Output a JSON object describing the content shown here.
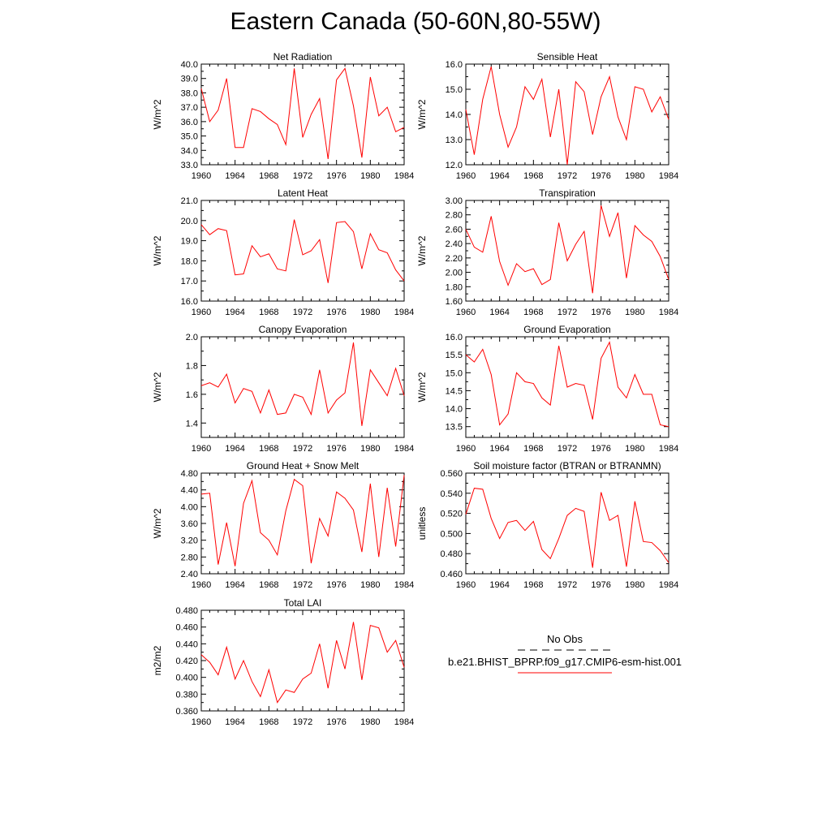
{
  "page_title": "Eastern Canada (50-60N,80-55W)",
  "legend": {
    "entries": [
      {
        "label": "No Obs",
        "color": "#000000",
        "dash": "dashed"
      },
      {
        "label": "b.e21.BHIST_BPRP.f09_g17.CMIP6-esm-hist.001",
        "color": "#ff0000",
        "dash": "solid"
      }
    ]
  },
  "chart_data": [
    {
      "type": "line",
      "title": "Net Radiation",
      "ylabel": "W/m^2",
      "xlim": [
        1960,
        1984
      ],
      "ylim": [
        33,
        40
      ],
      "x_ticks": [
        1960,
        1964,
        1968,
        1972,
        1976,
        1980,
        1984
      ],
      "x_tick_labels": [
        "1960",
        "1964",
        "1968",
        "1972",
        "1976",
        "1980",
        "1984"
      ],
      "y_ticks": [
        33,
        34,
        35,
        36,
        37,
        38,
        39,
        40
      ],
      "y_tick_labels": [
        "33.0",
        "34.0",
        "35.0",
        "36.0",
        "37.0",
        "38.0",
        "39.0",
        "40.0"
      ],
      "x": [
        1960,
        1961,
        1962,
        1963,
        1964,
        1965,
        1966,
        1967,
        1968,
        1969,
        1970,
        1971,
        1972,
        1973,
        1974,
        1975,
        1976,
        1977,
        1978,
        1979,
        1980,
        1981,
        1982,
        1983,
        1984
      ],
      "series": [
        {
          "color": "#ff0000",
          "values": [
            38.3,
            36.0,
            36.8,
            39.0,
            34.2,
            34.2,
            36.9,
            36.7,
            36.2,
            35.8,
            34.4,
            39.7,
            34.9,
            36.5,
            37.6,
            33.4,
            38.9,
            39.7,
            37.1,
            33.5,
            39.1,
            36.4,
            37.0,
            35.3,
            35.6
          ]
        }
      ]
    },
    {
      "type": "line",
      "title": "Sensible Heat",
      "ylabel": "W/m^2",
      "xlim": [
        1960,
        1984
      ],
      "ylim": [
        12,
        16
      ],
      "x_ticks": [
        1960,
        1964,
        1968,
        1972,
        1976,
        1980,
        1984
      ],
      "x_tick_labels": [
        "1960",
        "1964",
        "1968",
        "1972",
        "1976",
        "1980",
        "1984"
      ],
      "y_ticks": [
        12,
        13,
        14,
        15,
        16
      ],
      "y_tick_labels": [
        "12.0",
        "13.0",
        "14.0",
        "15.0",
        "16.0"
      ],
      "x": [
        1960,
        1961,
        1962,
        1963,
        1964,
        1965,
        1966,
        1967,
        1968,
        1969,
        1970,
        1971,
        1972,
        1973,
        1974,
        1975,
        1976,
        1977,
        1978,
        1979,
        1980,
        1981,
        1982,
        1983,
        1984
      ],
      "series": [
        {
          "color": "#ff0000",
          "values": [
            14.2,
            12.4,
            14.6,
            15.9,
            14.0,
            12.7,
            13.5,
            15.1,
            14.6,
            15.4,
            13.1,
            15.0,
            12.0,
            15.3,
            14.9,
            13.2,
            14.7,
            15.5,
            13.9,
            13.0,
            15.1,
            15.0,
            14.1,
            14.7,
            13.8
          ]
        }
      ]
    },
    {
      "type": "line",
      "title": "Latent Heat",
      "ylabel": "W/m^2",
      "xlim": [
        1960,
        1984
      ],
      "ylim": [
        16,
        21
      ],
      "x_ticks": [
        1960,
        1964,
        1968,
        1972,
        1976,
        1980,
        1984
      ],
      "x_tick_labels": [
        "1960",
        "1964",
        "1968",
        "1972",
        "1976",
        "1980",
        "1984"
      ],
      "y_ticks": [
        16,
        17,
        18,
        19,
        20,
        21
      ],
      "y_tick_labels": [
        "16.0",
        "17.0",
        "18.0",
        "19.0",
        "20.0",
        "21.0"
      ],
      "x": [
        1960,
        1961,
        1962,
        1963,
        1964,
        1965,
        1966,
        1967,
        1968,
        1969,
        1970,
        1971,
        1972,
        1973,
        1974,
        1975,
        1976,
        1977,
        1978,
        1979,
        1980,
        1981,
        1982,
        1983,
        1984
      ],
      "series": [
        {
          "color": "#ff0000",
          "values": [
            19.8,
            19.3,
            19.6,
            19.5,
            17.3,
            17.35,
            18.75,
            18.2,
            18.35,
            17.6,
            17.5,
            20.05,
            18.3,
            18.5,
            19.05,
            16.9,
            19.9,
            19.95,
            19.45,
            17.6,
            19.35,
            18.55,
            18.4,
            17.55,
            17.0
          ]
        }
      ]
    },
    {
      "type": "line",
      "title": "Transpiration",
      "ylabel": "W/m^2",
      "xlim": [
        1960,
        1984
      ],
      "ylim": [
        1.6,
        3.0
      ],
      "x_ticks": [
        1960,
        1964,
        1968,
        1972,
        1976,
        1980,
        1984
      ],
      "x_tick_labels": [
        "1960",
        "1964",
        "1968",
        "1972",
        "1976",
        "1980",
        "1984"
      ],
      "y_ticks": [
        1.6,
        1.8,
        2.0,
        2.2,
        2.4,
        2.6,
        2.8,
        3.0
      ],
      "y_tick_labels": [
        "1.60",
        "1.80",
        "2.00",
        "2.20",
        "2.40",
        "2.60",
        "2.80",
        "3.00"
      ],
      "x": [
        1960,
        1961,
        1962,
        1963,
        1964,
        1965,
        1966,
        1967,
        1968,
        1969,
        1970,
        1971,
        1972,
        1973,
        1974,
        1975,
        1976,
        1977,
        1978,
        1979,
        1980,
        1981,
        1982,
        1983,
        1984
      ],
      "series": [
        {
          "color": "#ff0000",
          "values": [
            2.6,
            2.35,
            2.28,
            2.78,
            2.15,
            1.82,
            2.12,
            2.01,
            2.05,
            1.83,
            1.9,
            2.69,
            2.16,
            2.39,
            2.57,
            1.71,
            2.93,
            2.5,
            2.83,
            1.92,
            2.65,
            2.52,
            2.43,
            2.22,
            1.9
          ]
        }
      ]
    },
    {
      "type": "line",
      "title": "Canopy Evaporation",
      "ylabel": "W/m^2",
      "xlim": [
        1960,
        1984
      ],
      "ylim": [
        1.3,
        2.0
      ],
      "x_ticks": [
        1960,
        1964,
        1968,
        1972,
        1976,
        1980,
        1984
      ],
      "x_tick_labels": [
        "1960",
        "1964",
        "1968",
        "1972",
        "1976",
        "1980",
        "1984"
      ],
      "y_ticks": [
        1.4,
        1.6,
        1.8,
        2.0
      ],
      "y_tick_labels": [
        "1.4",
        "1.6",
        "1.8",
        "2.0"
      ],
      "x": [
        1960,
        1961,
        1962,
        1963,
        1964,
        1965,
        1966,
        1967,
        1968,
        1969,
        1970,
        1971,
        1972,
        1973,
        1974,
        1975,
        1976,
        1977,
        1978,
        1979,
        1980,
        1981,
        1982,
        1983,
        1984
      ],
      "series": [
        {
          "color": "#ff0000",
          "values": [
            1.66,
            1.68,
            1.65,
            1.74,
            1.54,
            1.64,
            1.62,
            1.47,
            1.63,
            1.46,
            1.47,
            1.6,
            1.58,
            1.46,
            1.77,
            1.47,
            1.56,
            1.61,
            1.96,
            1.38,
            1.77,
            1.68,
            1.59,
            1.78,
            1.59
          ]
        }
      ]
    },
    {
      "type": "line",
      "title": "Ground Evaporation",
      "ylabel": "W/m^2",
      "xlim": [
        1960,
        1984
      ],
      "ylim": [
        13.2,
        16.0
      ],
      "x_ticks": [
        1960,
        1964,
        1968,
        1972,
        1976,
        1980,
        1984
      ],
      "x_tick_labels": [
        "1960",
        "1964",
        "1968",
        "1972",
        "1976",
        "1980",
        "1984"
      ],
      "y_ticks": [
        13.5,
        14.0,
        14.5,
        15.0,
        15.5,
        16.0
      ],
      "y_tick_labels": [
        "13.5",
        "14.0",
        "14.5",
        "15.0",
        "15.5",
        "16.0"
      ],
      "x": [
        1960,
        1961,
        1962,
        1963,
        1964,
        1965,
        1966,
        1967,
        1968,
        1969,
        1970,
        1971,
        1972,
        1973,
        1974,
        1975,
        1976,
        1977,
        1978,
        1979,
        1980,
        1981,
        1982,
        1983,
        1984
      ],
      "series": [
        {
          "color": "#ff0000",
          "values": [
            15.5,
            15.3,
            15.65,
            14.95,
            13.55,
            13.85,
            15.0,
            14.75,
            14.7,
            14.3,
            14.1,
            15.75,
            14.6,
            14.7,
            14.65,
            13.7,
            15.4,
            15.85,
            14.6,
            14.3,
            14.95,
            14.4,
            14.4,
            13.55,
            13.5
          ]
        }
      ]
    },
    {
      "type": "line",
      "title": "Ground Heat + Snow Melt",
      "ylabel": "W/m^2",
      "xlim": [
        1960,
        1984
      ],
      "ylim": [
        2.4,
        4.8
      ],
      "x_ticks": [
        1960,
        1964,
        1968,
        1972,
        1976,
        1980,
        1984
      ],
      "x_tick_labels": [
        "1960",
        "1964",
        "1968",
        "1972",
        "1976",
        "1980",
        "1984"
      ],
      "y_ticks": [
        2.4,
        2.8,
        3.2,
        3.6,
        4.0,
        4.4,
        4.8
      ],
      "y_tick_labels": [
        "2.40",
        "2.80",
        "3.20",
        "3.60",
        "4.00",
        "4.40",
        "4.80"
      ],
      "x": [
        1960,
        1961,
        1962,
        1963,
        1964,
        1965,
        1966,
        1967,
        1968,
        1969,
        1970,
        1971,
        1972,
        1973,
        1974,
        1975,
        1976,
        1977,
        1978,
        1979,
        1980,
        1981,
        1982,
        1983,
        1984
      ],
      "series": [
        {
          "color": "#ff0000",
          "values": [
            4.3,
            4.32,
            2.62,
            3.62,
            2.58,
            4.08,
            4.62,
            3.38,
            3.2,
            2.85,
            3.9,
            4.65,
            4.5,
            2.65,
            3.72,
            3.3,
            4.35,
            4.2,
            3.92,
            2.92,
            4.55,
            2.8,
            4.45,
            3.05,
            4.75
          ]
        }
      ]
    },
    {
      "type": "line",
      "title": "Soil moisture factor (BTRAN or BTRANMN)",
      "ylabel": "unitless",
      "xlim": [
        1960,
        1984
      ],
      "ylim": [
        0.46,
        0.56
      ],
      "x_ticks": [
        1960,
        1964,
        1968,
        1972,
        1976,
        1980,
        1984
      ],
      "x_tick_labels": [
        "1960",
        "1964",
        "1968",
        "1972",
        "1976",
        "1980",
        "1984"
      ],
      "y_ticks": [
        0.46,
        0.48,
        0.5,
        0.52,
        0.54,
        0.56
      ],
      "y_tick_labels": [
        "0.460",
        "0.480",
        "0.500",
        "0.520",
        "0.540",
        "0.560"
      ],
      "x": [
        1960,
        1961,
        1962,
        1963,
        1964,
        1965,
        1966,
        1967,
        1968,
        1969,
        1970,
        1971,
        1972,
        1973,
        1974,
        1975,
        1976,
        1977,
        1978,
        1979,
        1980,
        1981,
        1982,
        1983,
        1984
      ],
      "series": [
        {
          "color": "#ff0000",
          "values": [
            0.519,
            0.545,
            0.544,
            0.515,
            0.495,
            0.511,
            0.513,
            0.503,
            0.512,
            0.484,
            0.475,
            0.495,
            0.518,
            0.525,
            0.522,
            0.466,
            0.541,
            0.513,
            0.518,
            0.467,
            0.532,
            0.492,
            0.491,
            0.483,
            0.471
          ]
        }
      ]
    },
    {
      "type": "line",
      "title": "Total LAI",
      "ylabel": "m2/m2",
      "xlim": [
        1960,
        1984
      ],
      "ylim": [
        0.36,
        0.48
      ],
      "x_ticks": [
        1960,
        1964,
        1968,
        1972,
        1976,
        1980,
        1984
      ],
      "x_tick_labels": [
        "1960",
        "1964",
        "1968",
        "1972",
        "1976",
        "1980",
        "1984"
      ],
      "y_ticks": [
        0.36,
        0.38,
        0.4,
        0.42,
        0.44,
        0.46,
        0.48
      ],
      "y_tick_labels": [
        "0.360",
        "0.380",
        "0.400",
        "0.420",
        "0.440",
        "0.460",
        "0.480"
      ],
      "x": [
        1960,
        1961,
        1962,
        1963,
        1964,
        1965,
        1966,
        1967,
        1968,
        1969,
        1970,
        1971,
        1972,
        1973,
        1974,
        1975,
        1976,
        1977,
        1978,
        1979,
        1980,
        1981,
        1982,
        1983,
        1984
      ],
      "series": [
        {
          "color": "#ff0000",
          "values": [
            0.427,
            0.418,
            0.403,
            0.436,
            0.398,
            0.42,
            0.395,
            0.377,
            0.409,
            0.37,
            0.385,
            0.382,
            0.398,
            0.405,
            0.44,
            0.387,
            0.444,
            0.41,
            0.466,
            0.397,
            0.462,
            0.459,
            0.43,
            0.444,
            0.412
          ]
        }
      ]
    }
  ]
}
